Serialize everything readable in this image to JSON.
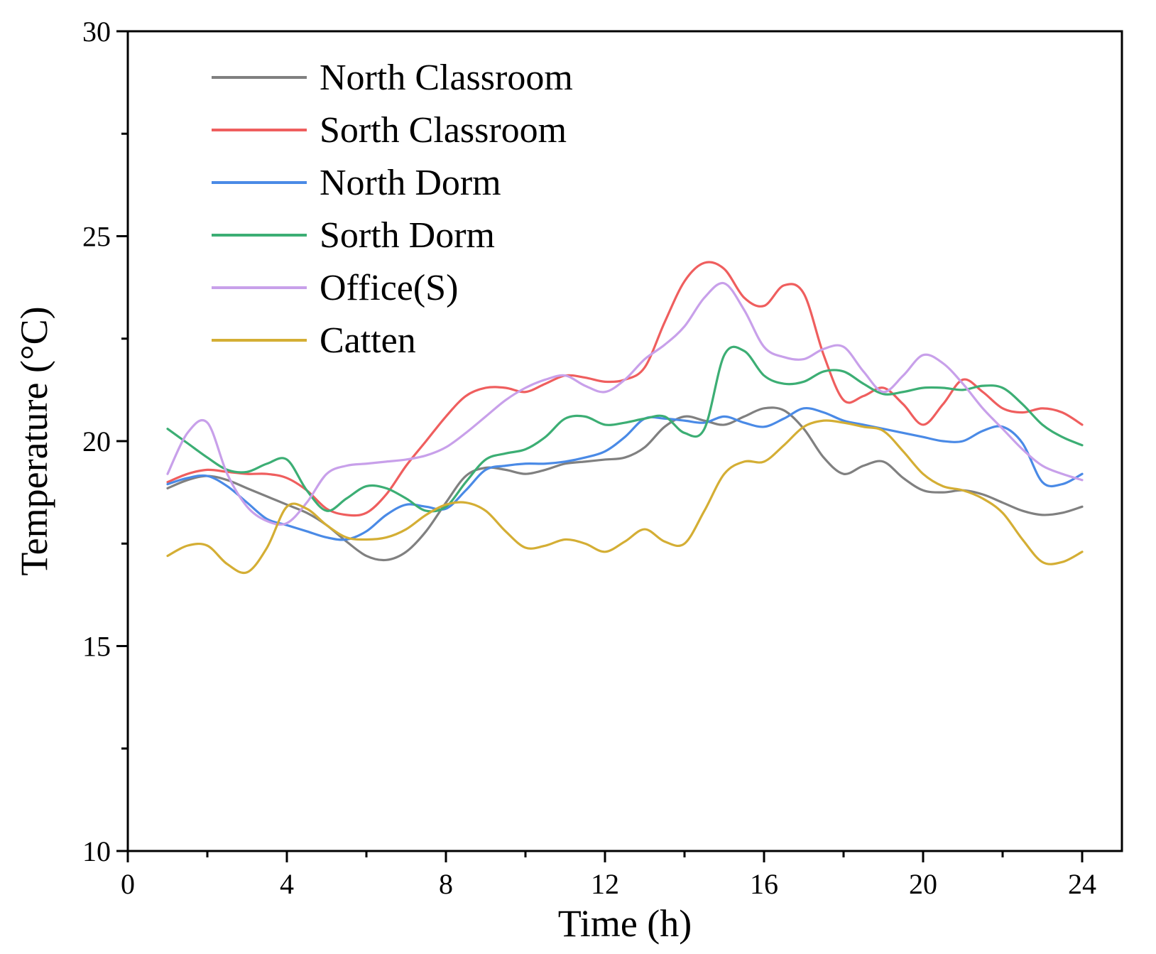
{
  "chart_data": {
    "type": "line",
    "title": "",
    "xlabel": "Time (h)",
    "ylabel": "Temperature (°C)",
    "xlim": [
      0,
      25
    ],
    "ylim": [
      10,
      30
    ],
    "xticks": [
      0,
      4,
      8,
      12,
      16,
      20,
      24
    ],
    "xtick_labels": [
      "0",
      "4",
      "8",
      "12",
      "16",
      "20",
      "24"
    ],
    "yticks": [
      10,
      15,
      20,
      25,
      30
    ],
    "ytick_labels": [
      "10",
      "15",
      "20",
      "25",
      "30"
    ],
    "legend_position": "top-left",
    "grid": false,
    "x": [
      1,
      1.5,
      2,
      2.5,
      3,
      3.5,
      4,
      4.5,
      5,
      5.5,
      6,
      6.5,
      7,
      7.5,
      8,
      8.5,
      9,
      9.5,
      10,
      10.5,
      11,
      11.5,
      12,
      12.5,
      13,
      13.5,
      14,
      14.5,
      15,
      15.5,
      16,
      16.5,
      17,
      17.5,
      18,
      18.5,
      19,
      19.5,
      20,
      20.5,
      21,
      21.5,
      22,
      22.5,
      23,
      23.5,
      24
    ],
    "series": [
      {
        "name": "North Classroom",
        "color": "#808080",
        "values": [
          18.85,
          19.05,
          19.15,
          19.05,
          18.85,
          18.65,
          18.45,
          18.25,
          17.95,
          17.55,
          17.2,
          17.1,
          17.3,
          17.8,
          18.5,
          19.15,
          19.35,
          19.3,
          19.2,
          19.3,
          19.45,
          19.5,
          19.55,
          19.6,
          19.85,
          20.35,
          20.6,
          20.5,
          20.4,
          20.6,
          20.8,
          20.75,
          20.3,
          19.6,
          19.2,
          19.4,
          19.5,
          19.1,
          18.8,
          18.75,
          18.8,
          18.7,
          18.5,
          18.3,
          18.2,
          18.25,
          18.4
        ]
      },
      {
        "name": "Sorth Classroom",
        "color": "#ef5e5e",
        "values": [
          19.0,
          19.2,
          19.3,
          19.25,
          19.2,
          19.2,
          19.1,
          18.8,
          18.35,
          18.2,
          18.25,
          18.7,
          19.4,
          20.0,
          20.6,
          21.1,
          21.3,
          21.3,
          21.2,
          21.4,
          21.6,
          21.55,
          21.45,
          21.5,
          21.8,
          22.9,
          23.9,
          24.35,
          24.2,
          23.5,
          23.3,
          23.8,
          23.6,
          22.1,
          21.0,
          21.1,
          21.3,
          20.9,
          20.4,
          20.9,
          21.5,
          21.2,
          20.8,
          20.7,
          20.8,
          20.7,
          20.4
        ]
      },
      {
        "name": "North Dorm",
        "color": "#4a8ae6",
        "values": [
          18.95,
          19.1,
          19.15,
          18.9,
          18.5,
          18.1,
          17.95,
          17.8,
          17.65,
          17.6,
          17.8,
          18.2,
          18.45,
          18.4,
          18.35,
          18.8,
          19.3,
          19.4,
          19.45,
          19.45,
          19.5,
          19.6,
          19.75,
          20.1,
          20.55,
          20.55,
          20.5,
          20.45,
          20.6,
          20.45,
          20.35,
          20.55,
          20.8,
          20.7,
          20.5,
          20.4,
          20.3,
          20.2,
          20.1,
          20.0,
          20.0,
          20.25,
          20.35,
          19.95,
          19.0,
          18.95,
          19.2
        ]
      },
      {
        "name": "Sorth Dorm",
        "color": "#3cae74",
        "values": [
          20.3,
          19.95,
          19.6,
          19.3,
          19.25,
          19.45,
          19.55,
          18.8,
          18.3,
          18.6,
          18.9,
          18.85,
          18.6,
          18.3,
          18.4,
          19.0,
          19.55,
          19.7,
          19.8,
          20.1,
          20.55,
          20.6,
          20.4,
          20.45,
          20.55,
          20.6,
          20.2,
          20.3,
          22.1,
          22.2,
          21.6,
          21.4,
          21.45,
          21.7,
          21.7,
          21.4,
          21.15,
          21.2,
          21.3,
          21.3,
          21.25,
          21.35,
          21.3,
          20.9,
          20.4,
          20.1,
          19.9
        ]
      },
      {
        "name": "Office(S)",
        "color": "#c8a0ea",
        "values": [
          19.2,
          20.2,
          20.45,
          19.2,
          18.4,
          18.05,
          18.0,
          18.5,
          19.2,
          19.4,
          19.45,
          19.5,
          19.55,
          19.65,
          19.85,
          20.2,
          20.6,
          21.0,
          21.3,
          21.5,
          21.6,
          21.35,
          21.2,
          21.5,
          22.0,
          22.35,
          22.8,
          23.5,
          23.85,
          23.2,
          22.3,
          22.05,
          22.0,
          22.25,
          22.3,
          21.7,
          21.2,
          21.6,
          22.1,
          21.9,
          21.4,
          20.8,
          20.3,
          19.8,
          19.4,
          19.2,
          19.05
        ]
      },
      {
        "name": "Catten",
        "color": "#d4ae34",
        "values": [
          17.2,
          17.45,
          17.45,
          17.0,
          16.8,
          17.4,
          18.4,
          18.35,
          17.95,
          17.65,
          17.6,
          17.65,
          17.85,
          18.2,
          18.45,
          18.5,
          18.3,
          17.8,
          17.4,
          17.45,
          17.6,
          17.5,
          17.3,
          17.55,
          17.85,
          17.55,
          17.5,
          18.3,
          19.2,
          19.5,
          19.5,
          19.9,
          20.35,
          20.5,
          20.45,
          20.35,
          20.25,
          19.75,
          19.2,
          18.9,
          18.8,
          18.6,
          18.25,
          17.6,
          17.05,
          17.05,
          17.3
        ]
      }
    ]
  }
}
